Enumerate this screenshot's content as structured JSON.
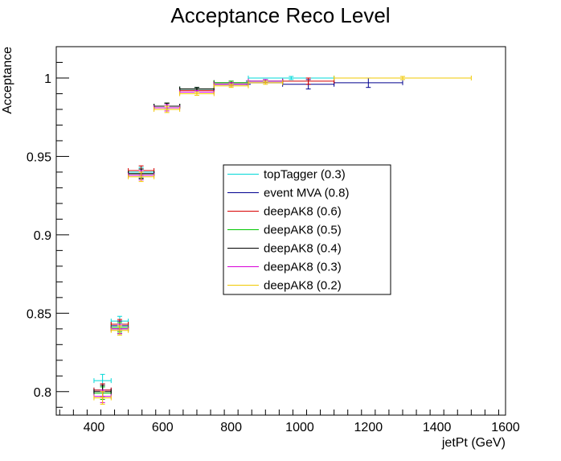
{
  "chart_data": {
    "type": "scatter",
    "title": "Acceptance Reco Level",
    "xlabel": "jetPt (GeV)",
    "ylabel": "Acceptance",
    "xlim": [
      290,
      1600
    ],
    "ylim": [
      0.785,
      1.02
    ],
    "x_ticks": [
      400,
      600,
      800,
      1000,
      1200,
      1400,
      1600
    ],
    "x_tick_labels": [
      "400",
      "600",
      "800",
      "1000",
      "1200",
      "1400",
      "1600"
    ],
    "y_ticks": [
      0.8,
      0.85,
      0.9,
      0.95,
      1.0
    ],
    "y_tick_labels": [
      "0.8",
      "0.85",
      "0.9",
      "0.95",
      "1"
    ],
    "grid": false,
    "legend_position": "center",
    "series": [
      {
        "name": "topTagger (0.3)",
        "color": "#00d8d8",
        "points": [
          {
            "x": 425,
            "xerr": 25,
            "y": 0.807,
            "yerr": 0.004
          },
          {
            "x": 475,
            "xerr": 25,
            "y": 0.845,
            "yerr": 0.003
          },
          {
            "x": 537.5,
            "xerr": 37.5,
            "y": 0.94,
            "yerr": 0.003
          },
          {
            "x": 612.5,
            "xerr": 37.5,
            "y": 0.982,
            "yerr": 0.002
          },
          {
            "x": 700,
            "xerr": 50,
            "y": 0.993,
            "yerr": 0.001
          },
          {
            "x": 800,
            "xerr": 50,
            "y": 0.997,
            "yerr": 0.001
          },
          {
            "x": 975,
            "xerr": 125,
            "y": 1.0,
            "yerr": 0.001
          }
        ]
      },
      {
        "name": "event MVA (0.8)",
        "color": "#00008f",
        "points": [
          {
            "x": 425,
            "xerr": 25,
            "y": 0.801,
            "yerr": 0.004
          },
          {
            "x": 475,
            "xerr": 25,
            "y": 0.842,
            "yerr": 0.003
          },
          {
            "x": 537.5,
            "xerr": 37.5,
            "y": 0.939,
            "yerr": 0.003
          },
          {
            "x": 612.5,
            "xerr": 37.5,
            "y": 0.982,
            "yerr": 0.002
          },
          {
            "x": 700,
            "xerr": 50,
            "y": 0.993,
            "yerr": 0.001
          },
          {
            "x": 850,
            "xerr": 100,
            "y": 0.997,
            "yerr": 0.001
          },
          {
            "x": 1025,
            "xerr": 75,
            "y": 0.996,
            "yerr": 0.003
          },
          {
            "x": 1200,
            "xerr": 100,
            "y": 0.997,
            "yerr": 0.003
          }
        ]
      },
      {
        "name": "deepAK8 (0.6)",
        "color": "#d80000",
        "points": [
          {
            "x": 425,
            "xerr": 25,
            "y": 0.801,
            "yerr": 0.004
          },
          {
            "x": 475,
            "xerr": 25,
            "y": 0.843,
            "yerr": 0.003
          },
          {
            "x": 537.5,
            "xerr": 37.5,
            "y": 0.941,
            "yerr": 0.003
          },
          {
            "x": 612.5,
            "xerr": 37.5,
            "y": 0.982,
            "yerr": 0.002
          },
          {
            "x": 700,
            "xerr": 50,
            "y": 0.992,
            "yerr": 0.001
          },
          {
            "x": 800,
            "xerr": 50,
            "y": 0.997,
            "yerr": 0.001
          },
          {
            "x": 1025,
            "xerr": 75,
            "y": 0.998,
            "yerr": 0.002
          }
        ]
      },
      {
        "name": "deepAK8 (0.5)",
        "color": "#00c800",
        "points": [
          {
            "x": 425,
            "xerr": 25,
            "y": 0.799,
            "yerr": 0.004
          },
          {
            "x": 475,
            "xerr": 25,
            "y": 0.841,
            "yerr": 0.003
          },
          {
            "x": 537.5,
            "xerr": 37.5,
            "y": 0.939,
            "yerr": 0.003
          },
          {
            "x": 612.5,
            "xerr": 37.5,
            "y": 0.982,
            "yerr": 0.002
          },
          {
            "x": 700,
            "xerr": 50,
            "y": 0.993,
            "yerr": 0.001
          },
          {
            "x": 800,
            "xerr": 50,
            "y": 0.997,
            "yerr": 0.001
          },
          {
            "x": 900,
            "xerr": 50,
            "y": 0.998,
            "yerr": 0.001
          }
        ]
      },
      {
        "name": "deepAK8 (0.4)",
        "color": "#000000",
        "points": [
          {
            "x": 425,
            "xerr": 25,
            "y": 0.8,
            "yerr": 0.004
          },
          {
            "x": 475,
            "xerr": 25,
            "y": 0.84,
            "yerr": 0.003
          },
          {
            "x": 537.5,
            "xerr": 37.5,
            "y": 0.939,
            "yerr": 0.003
          },
          {
            "x": 612.5,
            "xerr": 37.5,
            "y": 0.982,
            "yerr": 0.002
          },
          {
            "x": 700,
            "xerr": 50,
            "y": 0.993,
            "yerr": 0.001
          },
          {
            "x": 800,
            "xerr": 50,
            "y": 0.996,
            "yerr": 0.001
          },
          {
            "x": 900,
            "xerr": 50,
            "y": 0.998,
            "yerr": 0.001
          }
        ]
      },
      {
        "name": "deepAK8 (0.3)",
        "color": "#d800d8",
        "points": [
          {
            "x": 425,
            "xerr": 25,
            "y": 0.797,
            "yerr": 0.004
          },
          {
            "x": 475,
            "xerr": 25,
            "y": 0.84,
            "yerr": 0.003
          },
          {
            "x": 537.5,
            "xerr": 37.5,
            "y": 0.938,
            "yerr": 0.003
          },
          {
            "x": 612.5,
            "xerr": 37.5,
            "y": 0.981,
            "yerr": 0.002
          },
          {
            "x": 700,
            "xerr": 50,
            "y": 0.991,
            "yerr": 0.001
          },
          {
            "x": 800,
            "xerr": 50,
            "y": 0.996,
            "yerr": 0.001
          },
          {
            "x": 900,
            "xerr": 50,
            "y": 0.998,
            "yerr": 0.001
          }
        ]
      },
      {
        "name": "deepAK8 (0.2)",
        "color": "#f0c800",
        "points": [
          {
            "x": 425,
            "xerr": 25,
            "y": 0.796,
            "yerr": 0.004
          },
          {
            "x": 475,
            "xerr": 25,
            "y": 0.839,
            "yerr": 0.003
          },
          {
            "x": 537.5,
            "xerr": 37.5,
            "y": 0.937,
            "yerr": 0.003
          },
          {
            "x": 612.5,
            "xerr": 37.5,
            "y": 0.98,
            "yerr": 0.002
          },
          {
            "x": 700,
            "xerr": 50,
            "y": 0.99,
            "yerr": 0.001
          },
          {
            "x": 800,
            "xerr": 50,
            "y": 0.995,
            "yerr": 0.001
          },
          {
            "x": 900,
            "xerr": 50,
            "y": 0.997,
            "yerr": 0.001
          },
          {
            "x": 1300,
            "xerr": 200,
            "y": 1.0,
            "yerr": 0.001
          }
        ]
      }
    ]
  }
}
